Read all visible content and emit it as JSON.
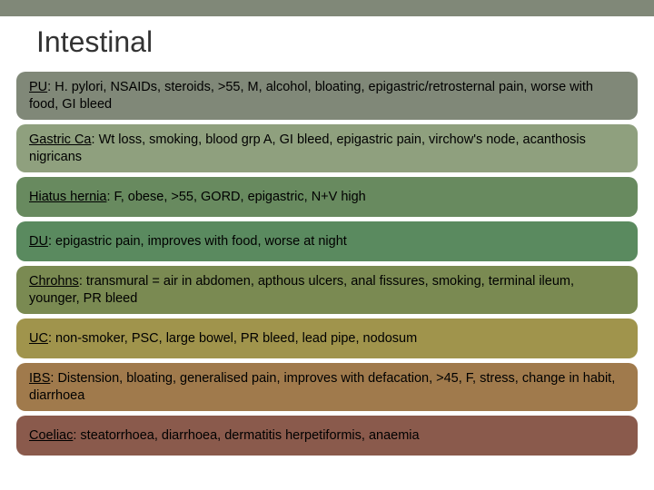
{
  "header": {
    "title": "Intestinal",
    "band_color": "#808878",
    "title_color": "#333333",
    "title_fontsize": 32
  },
  "rows": [
    {
      "term": "PU",
      "sep": ": ",
      "desc": "H. pylori, NSAIDs, steroids, >55, M, alcohol, bloating, epigastric/retrosternal pain, worse with food, GI bleed",
      "bg": "#808878"
    },
    {
      "term": "Gastric Ca",
      "sep": ": ",
      "desc": "Wt loss, smoking, blood grp A, GI bleed, epigastric pain, virchow's node, acanthosis nigricans",
      "bg": "#8fa07e"
    },
    {
      "term": "Hiatus hernia",
      "sep": ": ",
      "desc": "F, obese, >55, GORD, epigastric, N+V high",
      "bg": "#688a5f"
    },
    {
      "term": "DU",
      "sep": ": ",
      "desc": "epigastric pain, improves with food, worse at night",
      "bg": "#5a8a5f"
    },
    {
      "term": "Chrohns",
      "sep": ": ",
      "desc": "transmural = air in abdomen, apthous ulcers, anal fissures, smoking, terminal ileum, younger, PR bleed",
      "bg": "#7a8a52"
    },
    {
      "term": "UC",
      "sep": ": ",
      "desc": "non-smoker, PSC, large bowel, PR bleed, lead pipe, nodosum",
      "bg": "#a0944c"
    },
    {
      "term": "IBS",
      "sep": ": ",
      "desc": "Distension, bloating, generalised pain, improves with defacation, >45, F, stress, change in habit, diarrhoea",
      "bg": "#a07a4c"
    },
    {
      "term": "Coeliac",
      "sep": ": ",
      "desc": "steatorrhoea, diarrhoea, dermatitis herpetiformis, anaemia",
      "bg": "#8a5a4c"
    }
  ],
  "style": {
    "row_radius": 10,
    "row_fontsize": 14.5,
    "text_color": "#000000",
    "gap": 5
  }
}
